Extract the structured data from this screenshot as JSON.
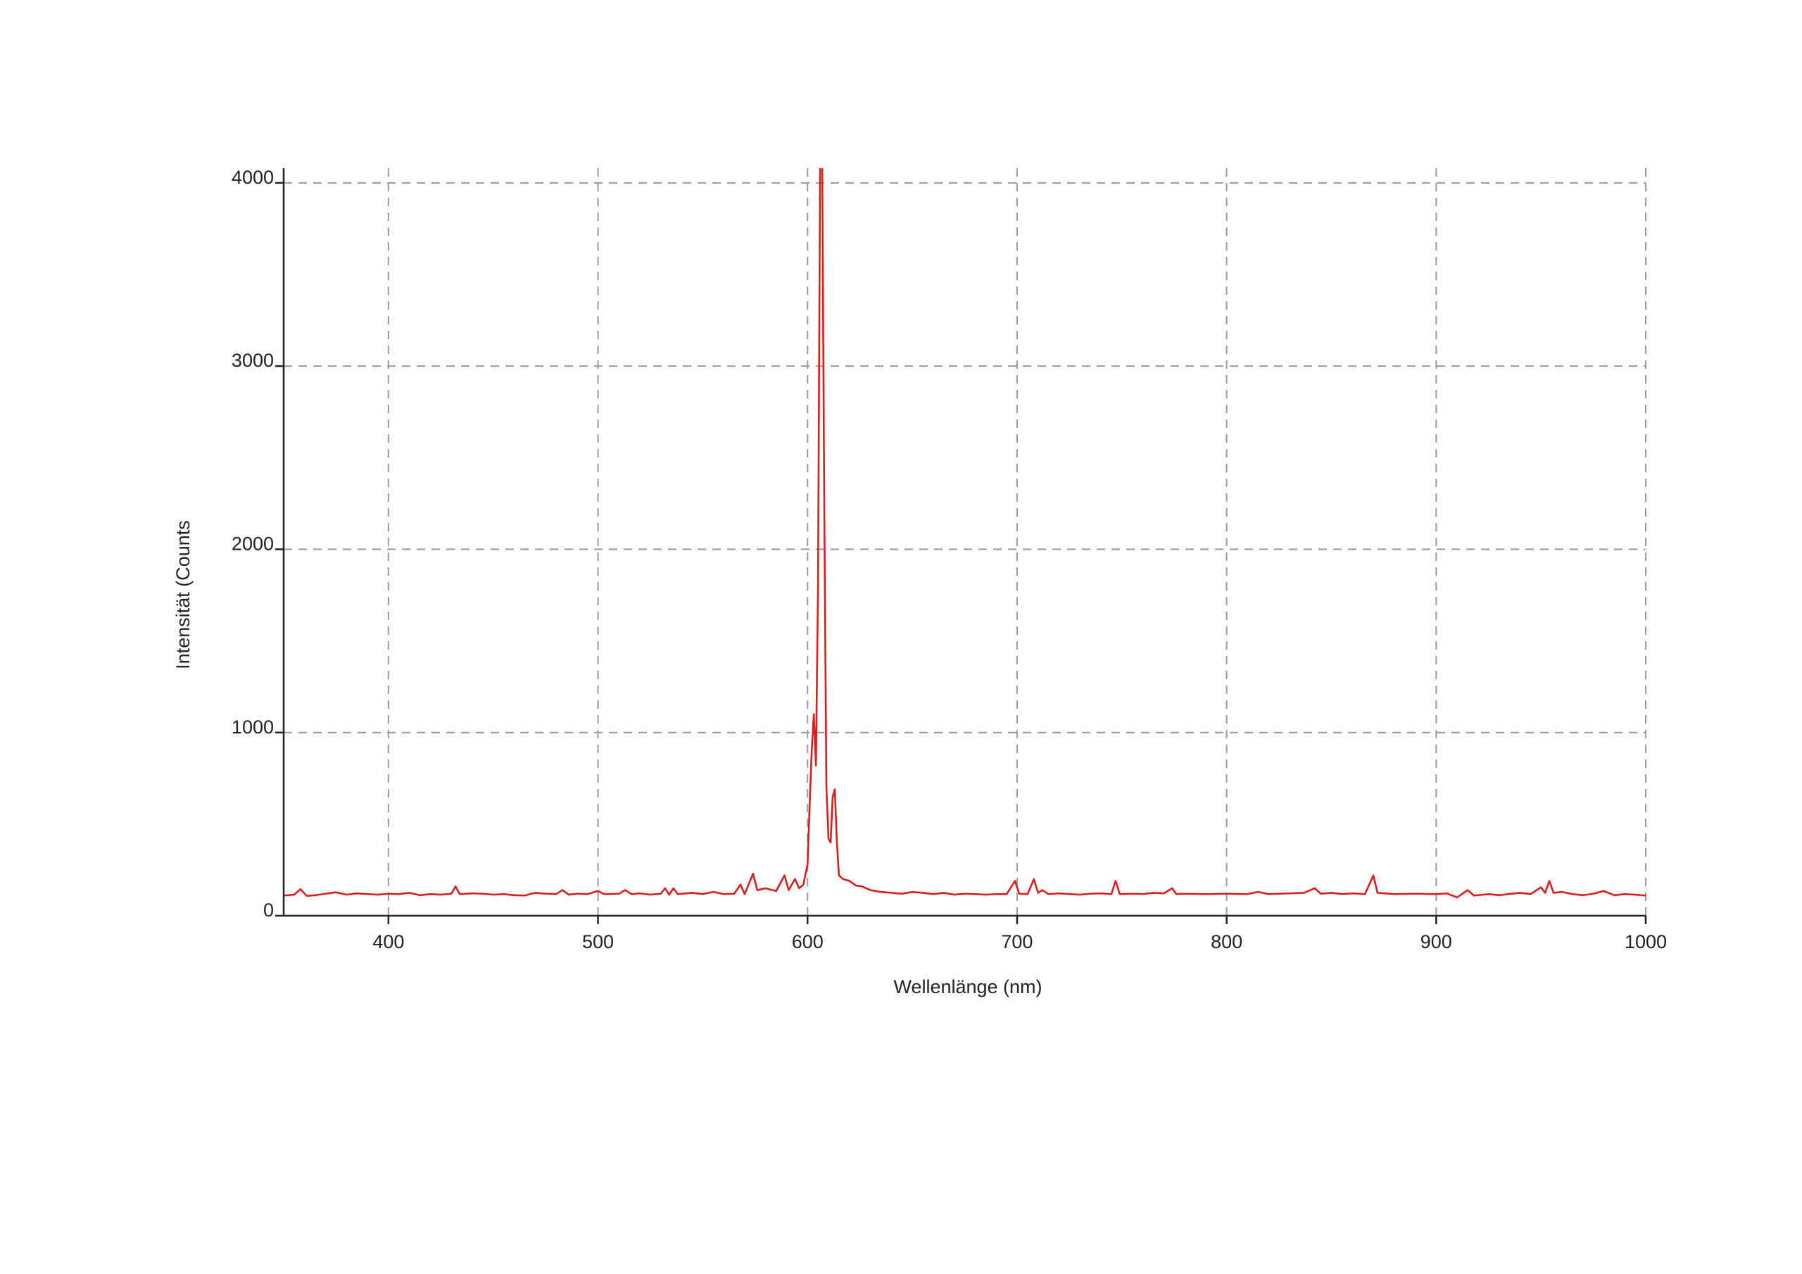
{
  "chart_data": {
    "type": "line",
    "xlabel": "Wellenlänge (nm)",
    "ylabel": "Intensität (Counts",
    "xlim": [
      350,
      1000
    ],
    "ylim": [
      0,
      4080
    ],
    "xticks": [
      400,
      500,
      600,
      700,
      800,
      900,
      1000
    ],
    "yticks": [
      0,
      1000,
      2000,
      3000,
      4000
    ],
    "grid": true,
    "series": [
      {
        "color": "#d81e1e",
        "x": [
          350,
          355,
          358,
          361,
          365,
          370,
          375,
          380,
          385,
          390,
          395,
          400,
          405,
          410,
          415,
          420,
          425,
          430,
          432,
          434,
          440,
          445,
          450,
          455,
          460,
          465,
          470,
          475,
          480,
          483,
          486,
          490,
          495,
          500,
          503,
          510,
          513,
          516,
          520,
          525,
          530,
          532,
          534,
          536,
          538,
          545,
          550,
          555,
          560,
          565,
          568,
          570,
          574,
          576,
          580,
          585,
          589,
          591,
          594,
          596,
          598,
          600,
          601,
          602,
          603,
          604,
          605,
          606,
          607,
          608,
          609,
          610,
          611,
          612,
          613,
          614,
          615,
          617,
          620,
          623,
          626,
          630,
          635,
          640,
          645,
          650,
          655,
          660,
          665,
          670,
          675,
          680,
          685,
          690,
          695,
          699,
          701,
          705,
          708,
          710,
          712,
          715,
          720,
          725,
          730,
          735,
          740,
          745,
          747,
          749,
          755,
          760,
          765,
          770,
          774,
          776,
          780,
          790,
          800,
          810,
          815,
          820,
          830,
          837,
          842,
          845,
          850,
          855,
          860,
          866,
          870,
          872,
          880,
          890,
          900,
          905,
          910,
          915,
          918,
          925,
          930,
          940,
          945,
          950,
          952,
          954,
          956,
          960,
          965,
          970,
          975,
          980,
          985,
          990,
          995,
          1000
        ],
        "values": [
          110,
          115,
          145,
          108,
          112,
          120,
          128,
          115,
          122,
          118,
          115,
          120,
          118,
          125,
          112,
          118,
          115,
          120,
          160,
          118,
          122,
          120,
          115,
          118,
          112,
          110,
          125,
          120,
          118,
          140,
          115,
          120,
          118,
          135,
          118,
          120,
          140,
          118,
          122,
          115,
          120,
          150,
          115,
          150,
          118,
          125,
          118,
          130,
          118,
          120,
          170,
          118,
          230,
          140,
          150,
          135,
          220,
          140,
          200,
          150,
          170,
          280,
          600,
          900,
          1100,
          820,
          1800,
          4100,
          4100,
          2200,
          700,
          420,
          400,
          650,
          690,
          400,
          220,
          200,
          190,
          165,
          160,
          140,
          130,
          125,
          120,
          130,
          125,
          118,
          125,
          115,
          120,
          118,
          115,
          118,
          118,
          190,
          120,
          118,
          200,
          125,
          140,
          118,
          122,
          118,
          115,
          120,
          122,
          118,
          190,
          118,
          120,
          118,
          125,
          122,
          150,
          118,
          120,
          118,
          120,
          118,
          130,
          118,
          122,
          125,
          150,
          120,
          125,
          118,
          122,
          118,
          220,
          125,
          118,
          120,
          118,
          122,
          100,
          140,
          110,
          118,
          112,
          125,
          118,
          155,
          125,
          190,
          125,
          130,
          118,
          112,
          120,
          135,
          112,
          118,
          115,
          110
        ]
      }
    ]
  }
}
